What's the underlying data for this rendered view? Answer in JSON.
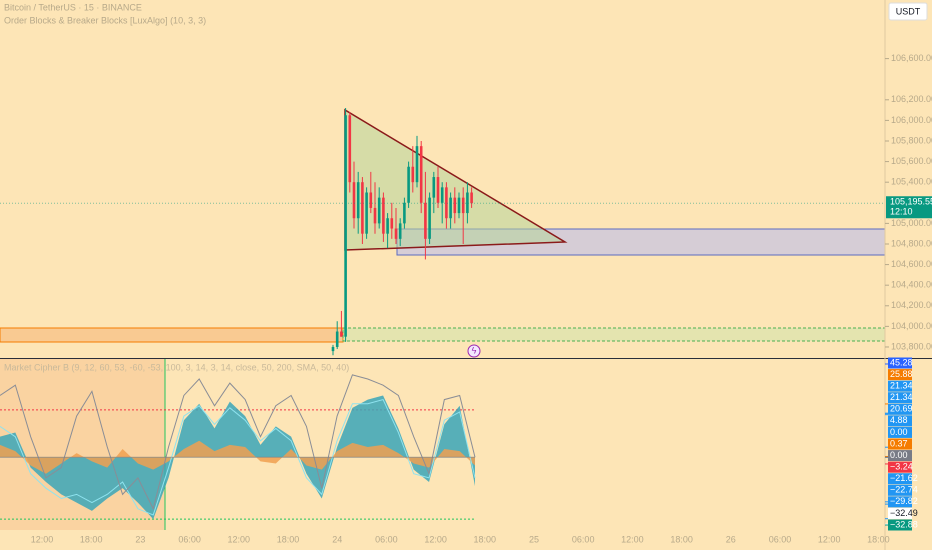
{
  "chart_data": [
    {
      "type": "candlestick",
      "title": "Bitcoin / TetherUS · 15 · BINANCE",
      "subtitle": "Order Blocks & Breaker Blocks [LuxAlgo] (10, 3, 3)",
      "currency": "USDT",
      "ylim": [
        103693,
        107169
      ],
      "yticks": [
        {
          "value": 106600,
          "label": "106,600.00"
        },
        {
          "value": 106200,
          "label": "106,200.00"
        },
        {
          "value": 106000,
          "label": "106,000.00"
        },
        {
          "value": 105800,
          "label": "105,800.00"
        },
        {
          "value": 105600,
          "label": "105,600.00"
        },
        {
          "value": 105400,
          "label": "105,400.00"
        },
        {
          "value": 105000,
          "label": "105,000.00"
        },
        {
          "value": 104800,
          "label": "104,800.00"
        },
        {
          "value": 104600,
          "label": "104,600.00"
        },
        {
          "value": 104400,
          "label": "104,400.00"
        },
        {
          "value": 104200,
          "label": "104,200.00"
        },
        {
          "value": 104000,
          "label": "104,000.00"
        },
        {
          "value": 103800,
          "label": "103,800.00"
        }
      ],
      "last_price": {
        "value": 105195.55,
        "label": "105,195.55"
      },
      "countdown": "12:10",
      "time_labels": [
        "12:00",
        "18:00",
        "23",
        "06:00",
        "12:00",
        "18:00",
        "24",
        "06:00",
        "12:00",
        "18:00",
        "25",
        "06:00",
        "12:00",
        "18:00",
        "26",
        "06:00",
        "12:00",
        "18:00"
      ],
      "up_color": "#089981",
      "down_color": "#f23645",
      "ohlc": [
        [
          103760,
          103820,
          103720,
          103800
        ],
        [
          103800,
          104050,
          103780,
          103950
        ],
        [
          103950,
          104150,
          103900,
          103900
        ],
        [
          103900,
          106120,
          103850,
          106050
        ],
        [
          106050,
          106080,
          105300,
          105400
        ],
        [
          105400,
          105600,
          104950,
          105050
        ],
        [
          105050,
          105500,
          104900,
          105400
        ],
        [
          105400,
          105450,
          104800,
          104900
        ],
        [
          104900,
          105350,
          104850,
          105300
        ],
        [
          105300,
          105500,
          105100,
          105150
        ],
        [
          105150,
          105400,
          104900,
          105000
        ],
        [
          105000,
          105350,
          104950,
          105250
        ],
        [
          105250,
          105300,
          104820,
          104900
        ],
        [
          104900,
          105100,
          104760,
          105050
        ],
        [
          105050,
          105200,
          104850,
          104950
        ],
        [
          104950,
          105150,
          104800,
          104850
        ],
        [
          104850,
          105050,
          104780,
          105000
        ],
        [
          105000,
          105250,
          104950,
          105200
        ],
        [
          105200,
          105600,
          105150,
          105550
        ],
        [
          105550,
          105750,
          105300,
          105400
        ],
        [
          105400,
          105850,
          105350,
          105750
        ],
        [
          105750,
          105800,
          105100,
          105200
        ],
        [
          105200,
          105500,
          104650,
          104850
        ],
        [
          104850,
          105300,
          104800,
          105250
        ],
        [
          105250,
          105500,
          105100,
          105450
        ],
        [
          105450,
          105550,
          105150,
          105200
        ],
        [
          105200,
          105400,
          105000,
          105350
        ],
        [
          105350,
          105400,
          104950,
          105050
        ],
        [
          105050,
          105300,
          104950,
          105250
        ],
        [
          105250,
          105350,
          105000,
          105100
        ],
        [
          105100,
          105300,
          105050,
          105250
        ],
        [
          105250,
          105350,
          104800,
          105100
        ],
        [
          105100,
          105400,
          105000,
          105300
        ],
        [
          105300,
          105350,
          105150,
          105195.55
        ]
      ]
    },
    {
      "type": "oscillator",
      "title": "Market Cipher B (9, 12, 60, 53, -60, -53, 100, 3, 14, 3, 14, close, 50, 200, SMA, 50, 40)",
      "ylim": [
        -35.3,
        47.7
      ],
      "series": [
        {
          "color": "#3aa6b9",
          "fill": true,
          "values": [
            10,
            12,
            -5,
            -12,
            -18,
            -22,
            -26,
            -20,
            -15,
            -22,
            -30,
            -10,
            18,
            26,
            14,
            27,
            20,
            6,
            15,
            10,
            -8,
            -20,
            5,
            24,
            28,
            30,
            14,
            -6,
            -12,
            16,
            25,
            -14
          ]
        },
        {
          "color": "#f0a050",
          "fill": true,
          "values": [
            6,
            3,
            -4,
            -8,
            -3,
            2,
            -2,
            -5,
            4,
            -3,
            -6,
            -2,
            4,
            8,
            3,
            6,
            5,
            -2,
            -3,
            4,
            -4,
            -6,
            3,
            7,
            5,
            6,
            2,
            -3,
            -5,
            4,
            3,
            -4
          ]
        },
        {
          "color": "#8fe3ef",
          "fill": false,
          "values": [
            15,
            10,
            -8,
            -15,
            -20,
            -18,
            -22,
            -18,
            -12,
            -25,
            -28,
            -5,
            20,
            25,
            16,
            24,
            18,
            8,
            14,
            8,
            -10,
            -18,
            8,
            26,
            26,
            28,
            12,
            -8,
            -10,
            18,
            22,
            -10
          ]
        },
        {
          "color": "#8a8d96",
          "fill": false,
          "values": [
            30,
            35,
            10,
            -10,
            -5,
            20,
            32,
            5,
            -18,
            -10,
            -25,
            5,
            30,
            38,
            25,
            36,
            28,
            10,
            25,
            30,
            15,
            -15,
            20,
            40,
            38,
            35,
            30,
            10,
            -8,
            28,
            30,
            0
          ]
        }
      ],
      "levels": [
        {
          "value": 23,
          "color": "#f23645"
        },
        {
          "value": -30,
          "color": "#22c55e"
        }
      ],
      "scale_labels": [
        {
          "value": 45.28,
          "label": "45.28",
          "color": "#2962ff"
        },
        {
          "value": 25.88,
          "label": "25.88",
          "color": "#f57c00"
        },
        {
          "value": 21.34,
          "label": "21.34",
          "color": "#2196f3"
        },
        {
          "value": 21.34,
          "label": "21.34",
          "color": "#2196f3"
        },
        {
          "value": 20.69,
          "label": "20.69",
          "color": "#2196f3"
        },
        {
          "value": 4.88,
          "label": "4.88",
          "color": "#2196f3"
        },
        {
          "value": 0,
          "label": "0.00",
          "color": "#2196f3"
        },
        {
          "value": 0.37,
          "label": "0.37",
          "color": "#f57c00"
        },
        {
          "value": 0,
          "label": "0.00",
          "color": "#787b86"
        },
        {
          "value": -3.24,
          "label": "−3.24",
          "color": "#f23645"
        },
        {
          "value": -21.62,
          "label": "−21.62",
          "color": "#2196f3"
        },
        {
          "value": -22.74,
          "label": "−22.74",
          "color": "#2196f3"
        },
        {
          "value": -29.82,
          "label": "−29.82",
          "color": "#2196f3"
        },
        {
          "value": -32.49,
          "label": "−32.49",
          "color": "#ffffff"
        },
        {
          "value": -32.88,
          "label": "−32.88",
          "color": "#089981"
        }
      ]
    }
  ]
}
